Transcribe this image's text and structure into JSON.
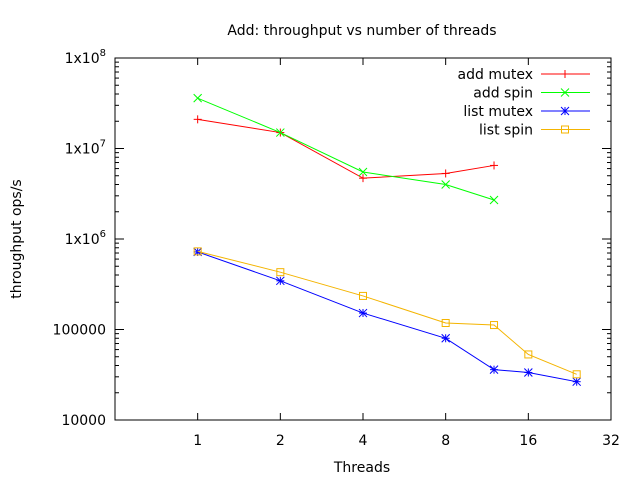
{
  "chart_data": {
    "type": "line",
    "title": "Add: throughput vs number of threads",
    "xlabel": "Threads",
    "ylabel": "throughput ops/s",
    "x_scale": "log2",
    "y_scale": "log10",
    "xlim": [
      0.5,
      32
    ],
    "ylim": [
      10000,
      100000000
    ],
    "x_ticks": [
      {
        "value": 1,
        "label": "1"
      },
      {
        "value": 2,
        "label": "2"
      },
      {
        "value": 4,
        "label": "4"
      },
      {
        "value": 8,
        "label": "8"
      },
      {
        "value": 16,
        "label": "16"
      },
      {
        "value": 32,
        "label": "32"
      }
    ],
    "y_ticks": [
      {
        "value": 10000,
        "label": "10000"
      },
      {
        "value": 100000,
        "label": "100000"
      },
      {
        "value": 1000000,
        "base": "1x10",
        "exp": "6"
      },
      {
        "value": 10000000,
        "base": "1x10",
        "exp": "7"
      },
      {
        "value": 100000000,
        "base": "1x10",
        "exp": "8"
      }
    ],
    "grid": false,
    "legend_position": "top-right",
    "series": [
      {
        "name": "add mutex",
        "color": "#ff0000",
        "marker": "plus",
        "x": [
          1,
          2,
          4,
          8,
          12
        ],
        "y": [
          21000000,
          15000000,
          4700000,
          5300000,
          6500000
        ]
      },
      {
        "name": "add spin",
        "color": "#00ff00",
        "marker": "cross",
        "x": [
          1,
          2,
          4,
          8,
          12
        ],
        "y": [
          36000000,
          15000000,
          5500000,
          4000000,
          2700000
        ]
      },
      {
        "name": "list mutex",
        "color": "#0000ff",
        "marker": "star",
        "x": [
          1,
          2,
          4,
          8,
          12,
          16,
          24
        ],
        "y": [
          720000,
          345000,
          152000,
          80000,
          36000,
          33500,
          26500
        ]
      },
      {
        "name": "list spin",
        "color": "#f4b400",
        "marker": "square",
        "x": [
          1,
          2,
          4,
          8,
          12,
          16,
          24
        ],
        "y": [
          730000,
          430000,
          235000,
          118000,
          112000,
          53000,
          32000
        ]
      }
    ]
  }
}
